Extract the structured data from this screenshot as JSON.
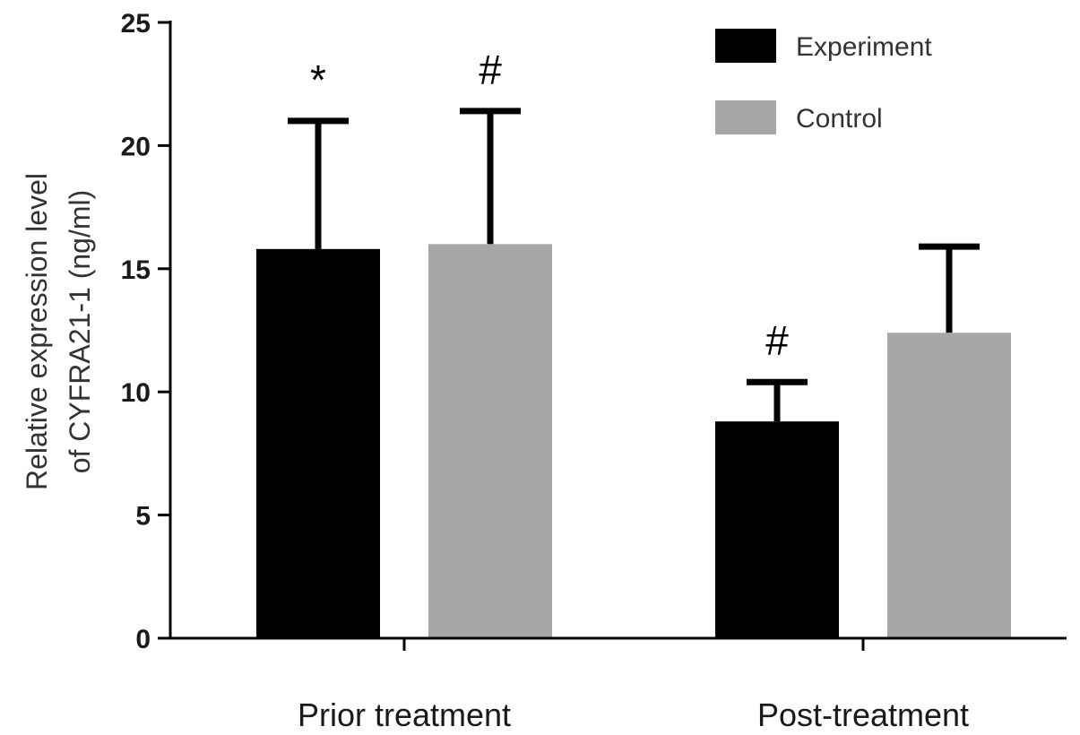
{
  "chart_data": {
    "type": "bar",
    "title": "",
    "xlabel": "",
    "ylabel": [
      "Relative expression level",
      "of CYFRA21-1 (ng/ml)"
    ],
    "ylim": [
      0,
      25
    ],
    "yticks": [
      0,
      5,
      10,
      15,
      20,
      25
    ],
    "categories": [
      "Prior treatment",
      "Post-treatment"
    ],
    "series": [
      {
        "name": "Experiment",
        "color": "#000000",
        "values": [
          15.8,
          8.8
        ],
        "error": [
          5.2,
          1.6
        ],
        "annotations": [
          "*",
          "#"
        ]
      },
      {
        "name": "Control",
        "color": "#a6a6a6",
        "values": [
          16.0,
          12.4
        ],
        "error": [
          5.4,
          3.5
        ],
        "annotations": [
          "#",
          ""
        ]
      }
    ],
    "legend": "top-right",
    "grid": false
  }
}
